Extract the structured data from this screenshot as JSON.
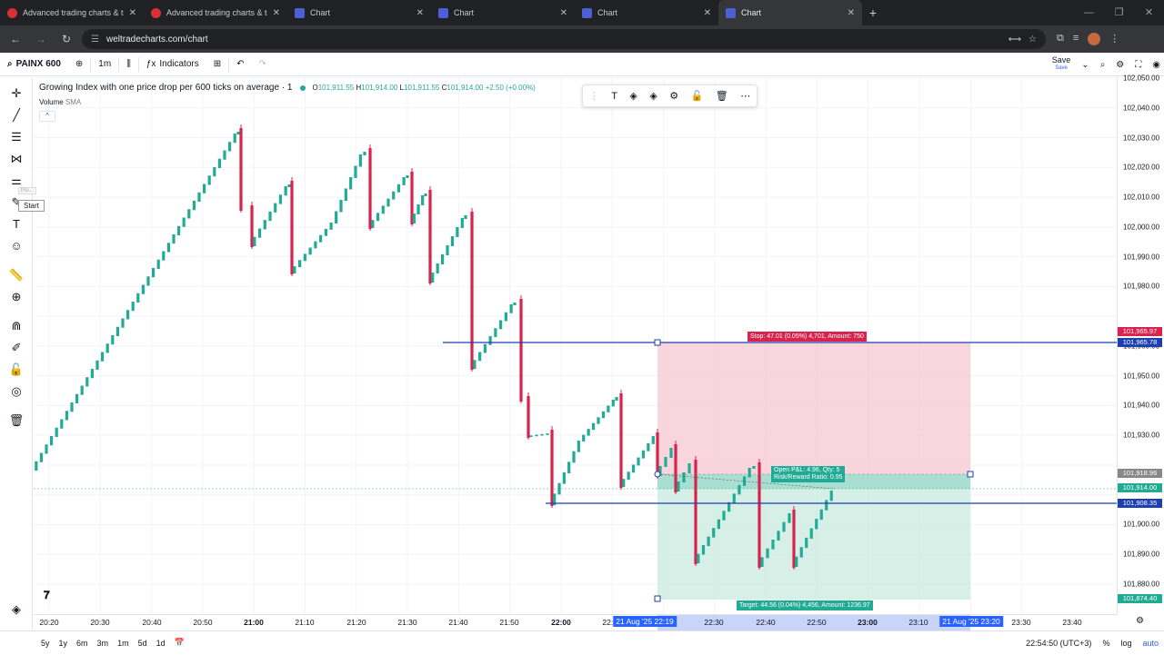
{
  "browser": {
    "tabs": [
      {
        "title": "Advanced trading charts & tools",
        "icon": "red",
        "active": false
      },
      {
        "title": "Advanced trading charts & tools",
        "icon": "red",
        "active": false
      },
      {
        "title": "Chart",
        "icon": "blue",
        "active": false
      },
      {
        "title": "Chart",
        "icon": "blue",
        "active": false
      },
      {
        "title": "Chart",
        "icon": "blue",
        "active": false
      },
      {
        "title": "Chart",
        "icon": "blue",
        "active": true
      }
    ],
    "url": "weltradecharts.com/chart"
  },
  "toolbar": {
    "symbol": "PAINX 600",
    "interval": "1m",
    "indicators_label": "Indicators",
    "save_label": "Save",
    "save_sub": "Save"
  },
  "legend": {
    "title": "Growing Index with one price drop per 600 ticks on average · 1",
    "ohlc": {
      "o": "101,911.55",
      "h": "101,914.00",
      "l": "101,911.55",
      "c": "101,914.00",
      "chg": "+2.50 (+0.00%)"
    },
    "volume_label": "Volume",
    "volume_ma": "SMA"
  },
  "left_tools": {
    "start_tooltip": "Start",
    "poi_label": "Poi..."
  },
  "position": {
    "stop_label": "Stop: 47.01 (0.05%) 4,701, Amount: 750",
    "target_label": "Target: 44.56 (0.04%) 4,456, Amount: 1236.97",
    "open_label_1": "Open P&L: 4.96, Qty: 5",
    "open_label_2": "Risk/Reward Ratio: 0.95"
  },
  "price_axis": {
    "ticks": [
      "102,050.00",
      "102,040.00",
      "102,030.00",
      "102,020.00",
      "102,010.00",
      "102,000.00",
      "101,990.00",
      "101,980.00",
      "101,960.00",
      "101,950.00",
      "101,940.00",
      "101,930.00",
      "101,900.00",
      "101,890.00",
      "101,880.00"
    ],
    "tags": {
      "stop_top": "101,965.97",
      "stop_line": "101,965.78",
      "entry": "101,918.96",
      "current": "101,914.00",
      "target_line": "101,908.35",
      "target_bottom": "101,874.40"
    }
  },
  "time_axis": {
    "labels": [
      "20:20",
      "20:30",
      "20:40",
      "20:50",
      "21:00",
      "21:10",
      "21:20",
      "21:30",
      "21:40",
      "21:50",
      "22:00",
      "22:10",
      "22:30",
      "22:40",
      "22:50",
      "23:00",
      "23:10",
      "23:30",
      "23:40"
    ],
    "bold_labels": [
      "21:00",
      "22:00",
      "23:00"
    ],
    "highlight_1": "21 Aug '25",
    "highlight_1_time": "22:19",
    "highlight_2": "21 Aug '25",
    "highlight_2_time": "23:20"
  },
  "bottom": {
    "ranges": [
      "5y",
      "1y",
      "6m",
      "3m",
      "1m",
      "5d",
      "1d"
    ],
    "clock": "22:54:50 (UTC+3)",
    "pct": "%",
    "log": "log",
    "auto": "auto"
  },
  "colors": {
    "up": "#22ab94",
    "down": "#d9224c",
    "stop_zone": "#f7c7d1",
    "target_zone": "#c8ebdf",
    "line_blue": "#1e3fb0"
  }
}
